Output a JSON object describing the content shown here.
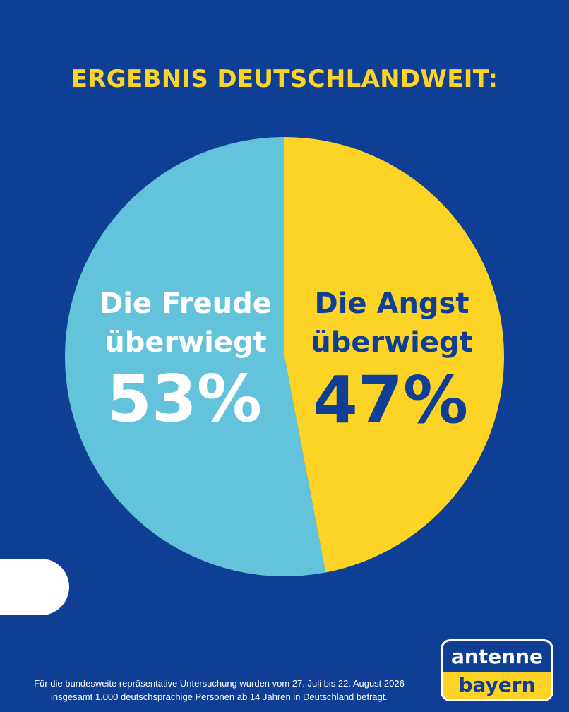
{
  "title": "ERGEBNIS DEUTSCHLANDWEIT:",
  "chart_data": {
    "type": "pie",
    "slices": [
      {
        "label_line1": "Die Freude",
        "label_line2": "überwiegt",
        "value": 53,
        "value_label": "53%",
        "color": "#62c3da",
        "text_color": "#ffffff"
      },
      {
        "label_line1": "Die Angst",
        "label_line2": "überwiegt",
        "value": 47,
        "value_label": "47%",
        "color": "#fdd326",
        "text_color": "#0f3f94"
      }
    ]
  },
  "footnote": "Für die bundesweite repräsentative Untersuchung wurden vom 27. Juli bis 22. August 2026 insgesamt 1.000 deutschsprachige Personen ab 14 Jahren in Deutschland befragt.",
  "logo": {
    "top": "antenne",
    "bottom": "bayern"
  },
  "colors": {
    "background": "#0f3f94",
    "accent": "#fdd326"
  }
}
